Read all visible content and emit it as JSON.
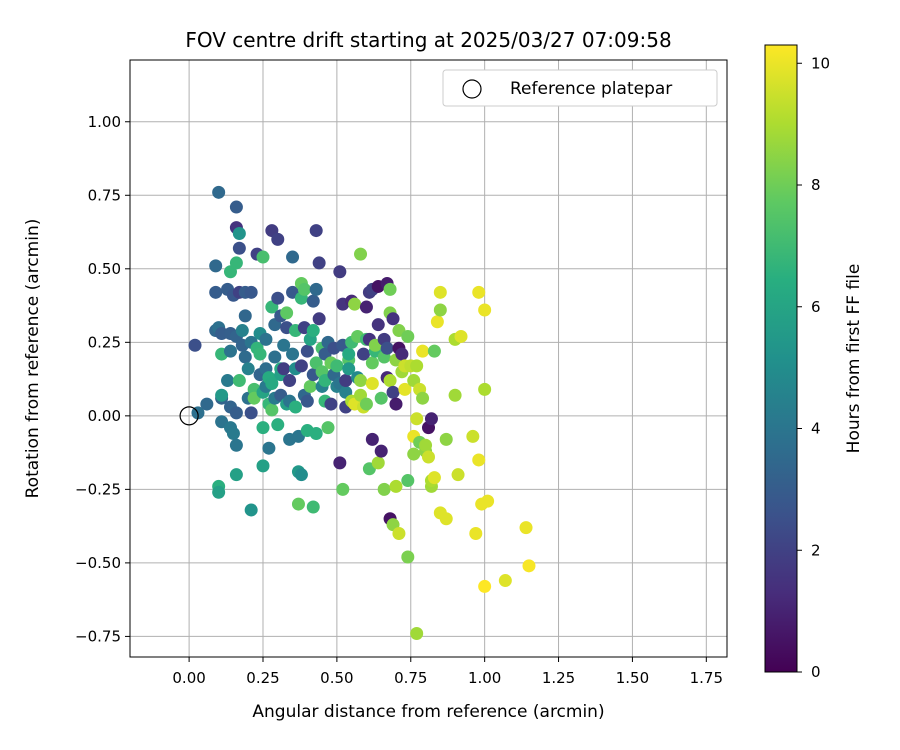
{
  "chart_data": {
    "type": "scatter",
    "title": "FOV centre drift starting at 2025/03/27 07:09:58",
    "xlabel": "Angular distance from reference (arcmin)",
    "ylabel": "Rotation from reference (arcmin)",
    "xlim": [
      -0.2,
      1.82
    ],
    "ylim": [
      -0.82,
      1.21
    ],
    "xticks": [
      "0.00",
      "0.25",
      "0.50",
      "0.75",
      "1.00",
      "1.25",
      "1.50",
      "1.75"
    ],
    "yticks": [
      "−0.75",
      "−0.50",
      "−0.25",
      "0.00",
      "0.25",
      "0.50",
      "0.75",
      "1.00"
    ],
    "grid": true,
    "legend": {
      "position": "top-right",
      "entries": [
        "Reference platepar"
      ]
    },
    "reference_point": {
      "x": 0.0,
      "y": 0.0
    },
    "colorbar": {
      "label": "Hours from first FF file",
      "colormap": "viridis",
      "range": [
        0,
        10.3
      ],
      "ticks": [
        "0",
        "2",
        "4",
        "6",
        "8",
        "10"
      ]
    },
    "points": [
      [
        0.02,
        0.24,
        2.5
      ],
      [
        0.03,
        0.01,
        3.8
      ],
      [
        0.06,
        0.04,
        3.5
      ],
      [
        0.09,
        0.42,
        3.0
      ],
      [
        0.09,
        0.51,
        3.5
      ],
      [
        0.09,
        0.29,
        3.4
      ],
      [
        0.1,
        0.76,
        3.5
      ],
      [
        0.1,
        0.3,
        3.8
      ],
      [
        0.11,
        0.28,
        3.0
      ],
      [
        0.11,
        0.06,
        3.3
      ],
      [
        0.11,
        -0.02,
        3.9
      ],
      [
        0.1,
        -0.24,
        6.5
      ],
      [
        0.1,
        -0.26,
        5.8
      ],
      [
        0.11,
        0.07,
        5.5
      ],
      [
        0.11,
        0.21,
        6.8
      ],
      [
        0.13,
        0.43,
        3.0
      ],
      [
        0.13,
        0.12,
        4.2
      ],
      [
        0.14,
        0.28,
        3.1
      ],
      [
        0.14,
        0.22,
        3.9
      ],
      [
        0.14,
        0.03,
        3.3
      ],
      [
        0.14,
        -0.04,
        4.1
      ],
      [
        0.14,
        0.49,
        6.8
      ],
      [
        0.15,
        -0.06,
        4.2
      ],
      [
        0.15,
        0.41,
        2.8
      ],
      [
        0.16,
        0.52,
        6.8
      ],
      [
        0.16,
        0.64,
        1.5
      ],
      [
        0.16,
        0.71,
        3.0
      ],
      [
        0.16,
        -0.1,
        4.0
      ],
      [
        0.16,
        -0.2,
        5.8
      ],
      [
        0.16,
        0.27,
        3.3
      ],
      [
        0.16,
        0.01,
        3.0
      ],
      [
        0.17,
        0.57,
        2.5
      ],
      [
        0.17,
        0.62,
        5.3
      ],
      [
        0.17,
        0.42,
        2.0
      ],
      [
        0.17,
        0.12,
        7.0
      ],
      [
        0.18,
        0.24,
        3.3
      ],
      [
        0.18,
        0.29,
        4.5
      ],
      [
        0.19,
        0.42,
        3.0
      ],
      [
        0.19,
        0.34,
        3.4
      ],
      [
        0.19,
        0.2,
        3.6
      ],
      [
        0.2,
        0.06,
        3.8
      ],
      [
        0.2,
        0.16,
        4.5
      ],
      [
        0.21,
        0.25,
        4.0
      ],
      [
        0.21,
        0.42,
        2.8
      ],
      [
        0.21,
        0.01,
        2.5
      ],
      [
        0.21,
        -0.32,
        5.3
      ],
      [
        0.22,
        0.09,
        7.2
      ],
      [
        0.22,
        0.06,
        7.8
      ],
      [
        0.23,
        0.23,
        6.7
      ],
      [
        0.23,
        0.55,
        2.0
      ],
      [
        0.24,
        0.28,
        5.0
      ],
      [
        0.24,
        0.21,
        6.8
      ],
      [
        0.24,
        0.14,
        3.3
      ],
      [
        0.25,
        0.54,
        7.2
      ],
      [
        0.25,
        -0.04,
        6.5
      ],
      [
        0.25,
        -0.17,
        5.8
      ],
      [
        0.25,
        0.08,
        6.0
      ],
      [
        0.26,
        0.1,
        4.2
      ],
      [
        0.26,
        0.16,
        3.7
      ],
      [
        0.26,
        0.26,
        3.9
      ],
      [
        0.27,
        -0.11,
        4.0
      ],
      [
        0.27,
        0.13,
        6.3
      ],
      [
        0.27,
        0.04,
        6.8
      ],
      [
        0.28,
        0.63,
        1.8
      ],
      [
        0.28,
        0.37,
        6.8
      ],
      [
        0.28,
        0.11,
        6.2
      ],
      [
        0.28,
        0.02,
        7.5
      ],
      [
        0.29,
        0.2,
        3.8
      ],
      [
        0.29,
        0.31,
        3.5
      ],
      [
        0.29,
        0.06,
        4.2
      ],
      [
        0.3,
        -0.03,
        6.5
      ],
      [
        0.3,
        0.4,
        2.5
      ],
      [
        0.3,
        0.6,
        2.0
      ],
      [
        0.31,
        0.34,
        2.8
      ],
      [
        0.31,
        0.16,
        6.3
      ],
      [
        0.31,
        0.14,
        5.8
      ],
      [
        0.31,
        0.07,
        3.0
      ],
      [
        0.32,
        0.24,
        4.0
      ],
      [
        0.32,
        0.16,
        1.8
      ],
      [
        0.33,
        0.3,
        2.5
      ],
      [
        0.33,
        0.04,
        5.8
      ],
      [
        0.33,
        0.35,
        7.7
      ],
      [
        0.34,
        -0.08,
        4.0
      ],
      [
        0.34,
        0.12,
        2.0
      ],
      [
        0.34,
        0.05,
        4.0
      ],
      [
        0.35,
        0.21,
        4.0
      ],
      [
        0.35,
        0.54,
        3.5
      ],
      [
        0.35,
        0.42,
        2.8
      ],
      [
        0.36,
        0.29,
        6.8
      ],
      [
        0.36,
        0.16,
        5.0
      ],
      [
        0.36,
        0.03,
        6.5
      ],
      [
        0.37,
        -0.3,
        7.8
      ],
      [
        0.37,
        -0.07,
        4.0
      ],
      [
        0.37,
        -0.19,
        5.5
      ],
      [
        0.38,
        0.45,
        7.8
      ],
      [
        0.38,
        0.4,
        6.8
      ],
      [
        0.38,
        0.17,
        2.0
      ],
      [
        0.38,
        -0.2,
        5.0
      ],
      [
        0.39,
        0.43,
        7.5
      ],
      [
        0.39,
        0.3,
        2.0
      ],
      [
        0.39,
        0.07,
        3.5
      ],
      [
        0.4,
        0.22,
        2.5
      ],
      [
        0.4,
        0.05,
        2.8
      ],
      [
        0.4,
        -0.05,
        6.5
      ],
      [
        0.41,
        0.26,
        6.0
      ],
      [
        0.41,
        0.1,
        7.8
      ],
      [
        0.42,
        0.29,
        6.5
      ],
      [
        0.42,
        -0.31,
        7.0
      ],
      [
        0.42,
        0.14,
        2.8
      ],
      [
        0.42,
        0.39,
        3.0
      ],
      [
        0.43,
        0.18,
        7.3
      ],
      [
        0.43,
        0.63,
        2.0
      ],
      [
        0.43,
        0.43,
        3.5
      ],
      [
        0.43,
        -0.06,
        6.5
      ],
      [
        0.44,
        0.52,
        2.0
      ],
      [
        0.44,
        0.33,
        1.8
      ],
      [
        0.45,
        0.23,
        7.2
      ],
      [
        0.45,
        0.15,
        7.5
      ],
      [
        0.45,
        0.1,
        4.5
      ],
      [
        0.46,
        0.12,
        6.7
      ],
      [
        0.46,
        0.21,
        3.0
      ],
      [
        0.46,
        0.05,
        6.8
      ],
      [
        0.47,
        -0.04,
        7.5
      ],
      [
        0.47,
        0.25,
        3.5
      ],
      [
        0.48,
        0.18,
        7.9
      ],
      [
        0.48,
        0.04,
        2.0
      ],
      [
        0.49,
        0.14,
        3.5
      ],
      [
        0.49,
        0.23,
        2.5
      ],
      [
        0.5,
        0.1,
        4.5
      ],
      [
        0.5,
        0.17,
        7.0
      ],
      [
        0.51,
        -0.16,
        1.0
      ],
      [
        0.51,
        0.11,
        4.0
      ],
      [
        0.51,
        0.49,
        1.8
      ],
      [
        0.52,
        0.24,
        2.8
      ],
      [
        0.52,
        0.38,
        1.5
      ],
      [
        0.52,
        -0.25,
        7.8
      ],
      [
        0.53,
        0.03,
        2.0
      ],
      [
        0.53,
        0.08,
        4.5
      ],
      [
        0.53,
        0.12,
        1.8
      ],
      [
        0.54,
        0.19,
        7.5
      ],
      [
        0.54,
        0.21,
        6.2
      ],
      [
        0.54,
        0.16,
        5.5
      ],
      [
        0.55,
        0.39,
        1.2
      ],
      [
        0.55,
        0.05,
        9.0
      ],
      [
        0.55,
        0.25,
        7.0
      ],
      [
        0.56,
        0.04,
        9.8
      ],
      [
        0.56,
        0.38,
        8.5
      ],
      [
        0.57,
        0.13,
        4.8
      ],
      [
        0.57,
        0.27,
        7.8
      ],
      [
        0.58,
        0.07,
        8.8
      ],
      [
        0.58,
        0.12,
        8.5
      ],
      [
        0.58,
        0.55,
        8.3
      ],
      [
        0.59,
        0.21,
        2.0
      ],
      [
        0.59,
        0.03,
        9.5
      ],
      [
        0.6,
        0.26,
        7.0
      ],
      [
        0.6,
        0.04,
        8.0
      ],
      [
        0.6,
        0.37,
        1.0
      ],
      [
        0.61,
        0.26,
        1.5
      ],
      [
        0.61,
        0.42,
        1.8
      ],
      [
        0.61,
        -0.18,
        7.5
      ],
      [
        0.62,
        -0.08,
        1.0
      ],
      [
        0.62,
        0.18,
        7.8
      ],
      [
        0.62,
        0.43,
        2.0
      ],
      [
        0.62,
        0.11,
        9.8
      ],
      [
        0.63,
        0.22,
        6.8
      ],
      [
        0.63,
        0.24,
        8.3
      ],
      [
        0.64,
        -0.16,
        8.8
      ],
      [
        0.64,
        0.31,
        1.5
      ],
      [
        0.64,
        0.44,
        0.5
      ],
      [
        0.65,
        0.06,
        7.5
      ],
      [
        0.65,
        -0.12,
        1.0
      ],
      [
        0.66,
        0.26,
        1.8
      ],
      [
        0.66,
        0.2,
        7.5
      ],
      [
        0.66,
        -0.25,
        8.3
      ],
      [
        0.67,
        0.45,
        0.8
      ],
      [
        0.67,
        0.13,
        1.2
      ],
      [
        0.67,
        0.23,
        2.5
      ],
      [
        0.68,
        0.35,
        8.3
      ],
      [
        0.68,
        0.43,
        8.0
      ],
      [
        0.68,
        -0.35,
        0.5
      ],
      [
        0.68,
        0.12,
        9.0
      ],
      [
        0.69,
        -0.37,
        8.5
      ],
      [
        0.69,
        0.08,
        2.0
      ],
      [
        0.69,
        0.33,
        1.5
      ],
      [
        0.7,
        -0.24,
        9.0
      ],
      [
        0.7,
        0.19,
        8.5
      ],
      [
        0.7,
        0.04,
        0.8
      ],
      [
        0.71,
        0.29,
        8.3
      ],
      [
        0.71,
        0.23,
        0.5
      ],
      [
        0.71,
        -0.4,
        9.5
      ],
      [
        0.72,
        0.21,
        1.2
      ],
      [
        0.72,
        0.15,
        8.8
      ],
      [
        0.73,
        0.17,
        9.5
      ],
      [
        0.73,
        0.09,
        9.9
      ],
      [
        0.74,
        -0.22,
        7.5
      ],
      [
        0.74,
        -0.48,
        8.2
      ],
      [
        0.74,
        0.27,
        8.0
      ],
      [
        0.75,
        0.17,
        9.3
      ],
      [
        0.76,
        0.12,
        8.8
      ],
      [
        0.76,
        -0.13,
        8.5
      ],
      [
        0.76,
        -0.07,
        10.0
      ],
      [
        0.77,
        -0.01,
        9.5
      ],
      [
        0.77,
        0.17,
        9.0
      ],
      [
        0.77,
        -0.74,
        8.8
      ],
      [
        0.78,
        -0.09,
        8.0
      ],
      [
        0.78,
        0.09,
        9.5
      ],
      [
        0.79,
        0.22,
        10.0
      ],
      [
        0.79,
        0.06,
        8.5
      ],
      [
        0.8,
        -0.12,
        8.5
      ],
      [
        0.8,
        -0.1,
        8.8
      ],
      [
        0.81,
        -0.14,
        9.5
      ],
      [
        0.81,
        -0.04,
        0.5
      ],
      [
        0.82,
        -0.01,
        1.0
      ],
      [
        0.82,
        -0.24,
        8.8
      ],
      [
        0.82,
        -0.22,
        9.0
      ],
      [
        0.83,
        0.22,
        7.8
      ],
      [
        0.83,
        -0.21,
        9.8
      ],
      [
        0.84,
        0.32,
        10.0
      ],
      [
        0.85,
        0.36,
        8.5
      ],
      [
        0.85,
        0.42,
        9.8
      ],
      [
        0.85,
        -0.33,
        9.8
      ],
      [
        0.87,
        -0.35,
        9.8
      ],
      [
        0.87,
        -0.08,
        8.5
      ],
      [
        0.9,
        0.26,
        9.0
      ],
      [
        0.9,
        0.07,
        8.8
      ],
      [
        0.91,
        -0.2,
        9.5
      ],
      [
        0.92,
        0.27,
        9.8
      ],
      [
        0.96,
        -0.07,
        9.5
      ],
      [
        0.97,
        -0.4,
        10.0
      ],
      [
        0.98,
        -0.15,
        10.0
      ],
      [
        0.98,
        0.42,
        10.0
      ],
      [
        0.99,
        -0.3,
        10.0
      ],
      [
        1.0,
        0.36,
        10.0
      ],
      [
        1.0,
        0.09,
        9.0
      ],
      [
        1.0,
        -0.58,
        10.3
      ],
      [
        1.01,
        -0.29,
        10.0
      ],
      [
        1.07,
        -0.56,
        9.8
      ],
      [
        1.14,
        -0.38,
        10.0
      ],
      [
        1.15,
        -0.51,
        10.2
      ]
    ]
  }
}
